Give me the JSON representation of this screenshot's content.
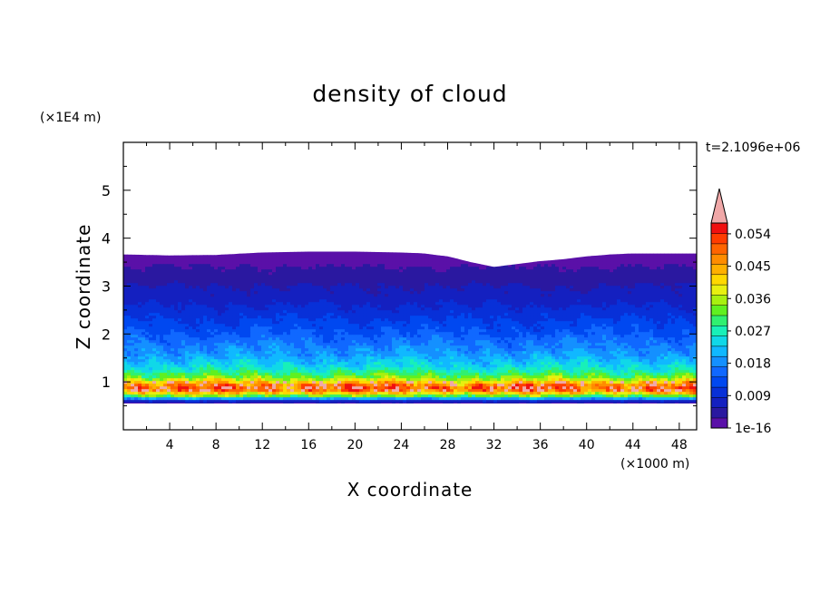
{
  "chart_data": {
    "type": "heatmap",
    "title": "density of cloud",
    "xlabel": "X coordinate",
    "ylabel": "Z coordinate",
    "x_unit": "(×1000 m)",
    "y_unit": "(×1E4 m)",
    "time_label": "t=2.1096e+06",
    "xlim": [
      0,
      49.5
    ],
    "ylim": [
      0,
      6
    ],
    "x_ticks": [
      4,
      8,
      12,
      16,
      20,
      24,
      28,
      32,
      36,
      40,
      44,
      48
    ],
    "y_ticks": [
      1,
      2,
      3,
      4,
      5
    ],
    "colorbar": {
      "labels": [
        "1e-16",
        "0.009",
        "0.018",
        "0.027",
        "0.036",
        "0.045",
        "0.054"
      ],
      "label_values": [
        0,
        0.009,
        0.018,
        0.027,
        0.036,
        0.045,
        0.054
      ],
      "levels": [
        0,
        0.003,
        0.006,
        0.009,
        0.012,
        0.015,
        0.018,
        0.021,
        0.024,
        0.027,
        0.03,
        0.033,
        0.036,
        0.039,
        0.042,
        0.045,
        0.048,
        0.051,
        0.054,
        0.057,
        0.06
      ],
      "colors": [
        "#5a10a8",
        "#2a18a0",
        "#1420c0",
        "#0830d8",
        "#0048f0",
        "#1068ff",
        "#1490ff",
        "#10b8ff",
        "#10d8e8",
        "#18f0b8",
        "#30f070",
        "#60f020",
        "#a8f010",
        "#e8f010",
        "#ffd800",
        "#ffb000",
        "#ff8c00",
        "#ff6400",
        "#ff3c00",
        "#f01010",
        "#f0a8a8"
      ],
      "overflow_color": "#f0a8a8"
    },
    "profile": {
      "z": [
        0.55,
        0.62,
        0.68,
        0.74,
        0.8,
        0.86,
        0.92,
        0.98,
        1.04,
        1.1,
        1.18,
        1.28,
        1.4,
        1.55,
        1.7,
        1.85,
        2.0,
        2.2,
        2.4,
        2.6,
        2.8,
        3.0,
        3.2,
        3.4,
        3.6,
        3.7
      ],
      "value": [
        0.003,
        0.012,
        0.03,
        0.04,
        0.05,
        0.054,
        0.052,
        0.046,
        0.04,
        0.035,
        0.031,
        0.027,
        0.024,
        0.021,
        0.019,
        0.017,
        0.015,
        0.013,
        0.011,
        0.009,
        0.007,
        0.006,
        0.004,
        0.003,
        0.002,
        0.001
      ]
    },
    "cloud_bottom_z": 0.55,
    "cloud_top": {
      "x": [
        0,
        4,
        8,
        12,
        16,
        20,
        24,
        26,
        28,
        30,
        32,
        34,
        36,
        38,
        40,
        42,
        44,
        46,
        48,
        49.5
      ],
      "z": [
        3.66,
        3.64,
        3.65,
        3.7,
        3.72,
        3.72,
        3.7,
        3.68,
        3.62,
        3.5,
        3.4,
        3.46,
        3.52,
        3.56,
        3.62,
        3.66,
        3.68,
        3.68,
        3.68,
        3.68
      ]
    }
  }
}
